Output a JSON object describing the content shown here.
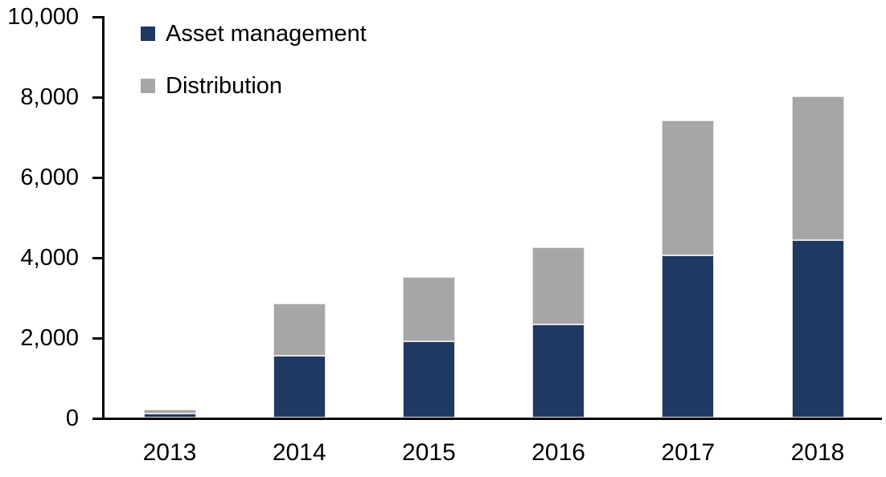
{
  "chart_data": {
    "type": "bar",
    "stacked": true,
    "title": "",
    "xlabel": "",
    "ylabel": "",
    "categories": [
      "2013",
      "2014",
      "2015",
      "2016",
      "2017",
      "2018"
    ],
    "series": [
      {
        "name": "Asset management",
        "color": "#1f3864",
        "values": [
          100,
          1550,
          1900,
          2320,
          4050,
          4420
        ]
      },
      {
        "name": "Distribution",
        "color": "#a6a6a6",
        "values": [
          100,
          1300,
          1600,
          1930,
          3350,
          3580
        ]
      }
    ],
    "totals": [
      200,
      2850,
      3500,
      4250,
      7400,
      8000
    ],
    "ylim": [
      0,
      10000
    ],
    "ytick_interval": 2000,
    "ytick_values": [
      0,
      2000,
      4000,
      6000,
      8000,
      10000
    ],
    "ytick_labels": [
      "0",
      "2,000",
      "4,000",
      "6,000",
      "8,000",
      "10,000"
    ],
    "grid": false,
    "legend_position": "top-left",
    "axis_color": "#000000",
    "text_color": "#000000"
  }
}
